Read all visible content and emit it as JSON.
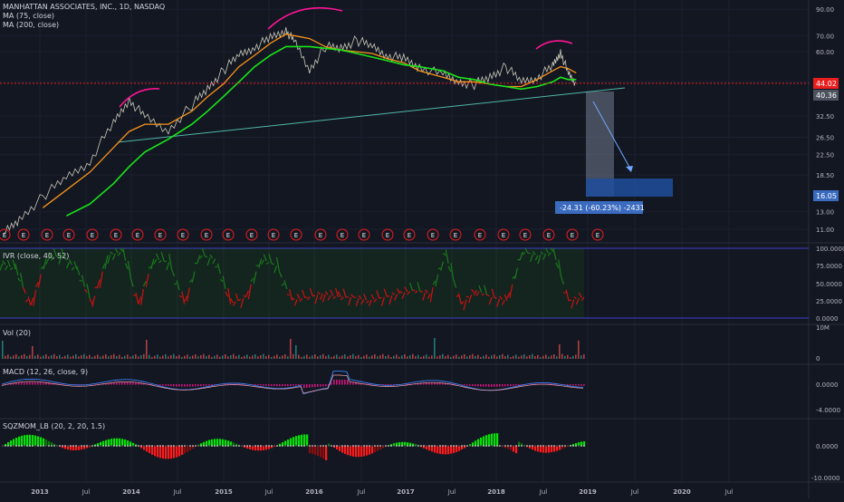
{
  "chart": {
    "title": "MANHATTAN ASSOCIATES, INC., 1D, NASDAQ",
    "ma75_label": "MA (75, close)",
    "ma200_label": "MA (200, close)",
    "last_price": "44.02",
    "ma_tag": "40.36",
    "target_tag": "16.05",
    "measure_label": "-24.31 (-60.23%) -2431",
    "earnings_marker": "E"
  },
  "price_axis": [
    "90.00",
    "70.00",
    "60.00",
    "45.00",
    "32.50",
    "26.50",
    "22.50",
    "18.50",
    "13.00",
    "11.00"
  ],
  "time_axis": [
    "2013",
    "Jul",
    "2014",
    "Jul",
    "2015",
    "Jul",
    "2016",
    "Jul",
    "2017",
    "Jul",
    "2018",
    "Jul",
    "2019",
    "Jul",
    "2020",
    "Jul"
  ],
  "ivr": {
    "label": "IVR (close, 40, 52)",
    "ticks": [
      "100.0000",
      "75.0000",
      "50.0000",
      "25.0000",
      "0.0000"
    ]
  },
  "vol": {
    "label": "Vol (20)",
    "ticks": [
      "10M",
      "0"
    ]
  },
  "macd": {
    "label": "MACD (12, 26, close, 9)",
    "ticks": [
      "0.0000",
      "-4.0000"
    ]
  },
  "sqz": {
    "label": "SQZMOM_LB (20, 2, 20, 1.5)",
    "ticks": [
      "0.0000",
      "-10.0000"
    ]
  },
  "colors": {
    "background": "#131722",
    "ma75": "#f7931a",
    "ma200": "#19e619",
    "price": "#c9c9b8",
    "arc": "#ff1493",
    "last_price": "#e91e1e",
    "measure": "#5a7fb8",
    "ivr_hi": "#1a7a1a",
    "ivr_lo": "#d01010"
  },
  "chart_data": [
    {
      "type": "line",
      "title": "MANHATTAN ASSOCIATES, INC., 1D, NASDAQ",
      "x": [
        "2012-11",
        "2013-01",
        "2013-04",
        "2013-07",
        "2013-10",
        "2014-01",
        "2014-03",
        "2014-05",
        "2014-08",
        "2014-11",
        "2015-01",
        "2015-03",
        "2015-05",
        "2015-07",
        "2015-09",
        "2015-11",
        "2015-12",
        "2016-02",
        "2016-04",
        "2016-06",
        "2016-08",
        "2016-10",
        "2016-12",
        "2017-02",
        "2017-04",
        "2017-07",
        "2017-09",
        "2017-11",
        "2018-01",
        "2018-03",
        "2018-05",
        "2018-07",
        "2018-09",
        "2018-10",
        "2018-11",
        "2018-12"
      ],
      "series": [
        {
          "name": "MA (75, close)",
          "values": [
            null,
            null,
            13.5,
            16,
            19,
            24,
            28,
            30,
            30,
            34,
            39,
            44,
            52,
            58,
            65,
            71,
            70,
            68,
            63,
            61,
            60,
            59,
            56,
            54,
            50,
            47,
            45,
            45,
            44,
            43,
            43,
            46,
            50,
            52,
            51,
            49
          ]
        },
        {
          "name": "MA (200, close)",
          "values": [
            null,
            null,
            null,
            12.5,
            14,
            17,
            20,
            23,
            26,
            30,
            34,
            39,
            45,
            52,
            58,
            63,
            63,
            63,
            62,
            61,
            59,
            57,
            55,
            53,
            52,
            50,
            47,
            46,
            44,
            43,
            42,
            43,
            45,
            47,
            46,
            46
          ]
        }
      ],
      "price_values": [
        10.5,
        12,
        15,
        18,
        21,
        30,
        38,
        32,
        28,
        36,
        42,
        50,
        58,
        63,
        68,
        74,
        66,
        50,
        63,
        62,
        67,
        63,
        58,
        56,
        52,
        48,
        45,
        44,
        47,
        52,
        45,
        47,
        52,
        60,
        48,
        44
      ],
      "last_price": 44.02,
      "ylim": [
        10,
        95
      ],
      "scale": "log",
      "measure": {
        "from": 40.36,
        "to": 16.05,
        "change": -24.31,
        "percent": -60.23
      }
    },
    {
      "type": "area",
      "title": "IVR (close, 40, 52)",
      "values": [
        80,
        70,
        18,
        85,
        90,
        70,
        20,
        90,
        95,
        20,
        85,
        80,
        20,
        90,
        85,
        20,
        30,
        85,
        75,
        25,
        30,
        35,
        30,
        30,
        25,
        30,
        35,
        40,
        35,
        90,
        20,
        40,
        30,
        25,
        95,
        90,
        95,
        25,
        30
      ],
      "ylim": [
        0,
        100
      ]
    }
  ]
}
